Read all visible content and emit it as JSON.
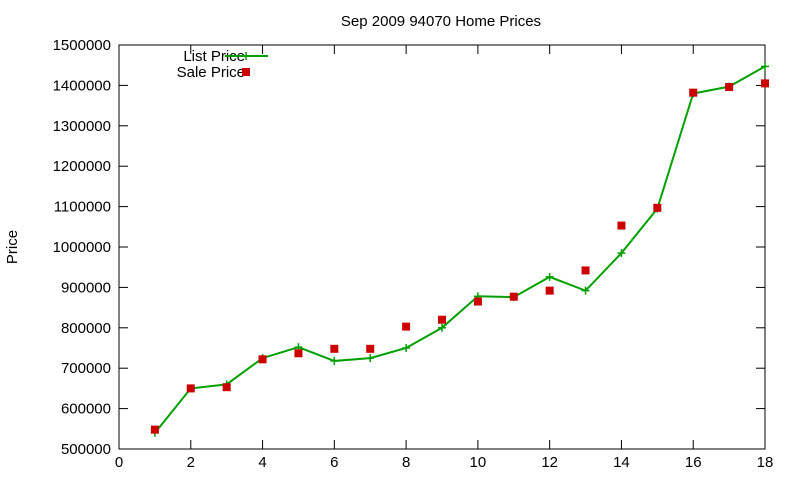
{
  "chart_data": {
    "type": "line",
    "title": "Sep 2009 94070 Home Prices",
    "xlabel": "",
    "ylabel": "Price",
    "xlim": [
      0,
      18
    ],
    "ylim": [
      500000,
      1500000
    ],
    "x_ticks": [
      "0",
      "2",
      "4",
      "6",
      "8",
      "10",
      "12",
      "14",
      "16",
      "18"
    ],
    "y_ticks": [
      "500000",
      "600000",
      "700000",
      "800000",
      "900000",
      "1000000",
      "1100000",
      "1200000",
      "1300000",
      "1400000",
      "1500000"
    ],
    "grid": false,
    "legend_position": "top-left",
    "series": [
      {
        "name": "List Price",
        "style": "line+cross",
        "color": "#00a000",
        "x": [
          1,
          2,
          3,
          4,
          5,
          6,
          7,
          8,
          9,
          10,
          11,
          12,
          13,
          14,
          15,
          16,
          17,
          18
        ],
        "y": [
          540000,
          650000,
          660000,
          725000,
          752000,
          718000,
          725000,
          750000,
          800000,
          878000,
          876000,
          926000,
          892000,
          985000,
          1095000,
          1380000,
          1397000,
          1447000
        ]
      },
      {
        "name": "Sale Price",
        "style": "square",
        "color": "#cc0000",
        "x": [
          1,
          2,
          3,
          4,
          5,
          6,
          7,
          8,
          9,
          10,
          11,
          12,
          13,
          14,
          15,
          16,
          17,
          18
        ],
        "y": [
          548000,
          650000,
          653000,
          722000,
          737000,
          748000,
          748000,
          803000,
          820000,
          865000,
          877000,
          892000,
          942000,
          1053000,
          1097000,
          1382000,
          1396000,
          1405000
        ]
      }
    ]
  }
}
